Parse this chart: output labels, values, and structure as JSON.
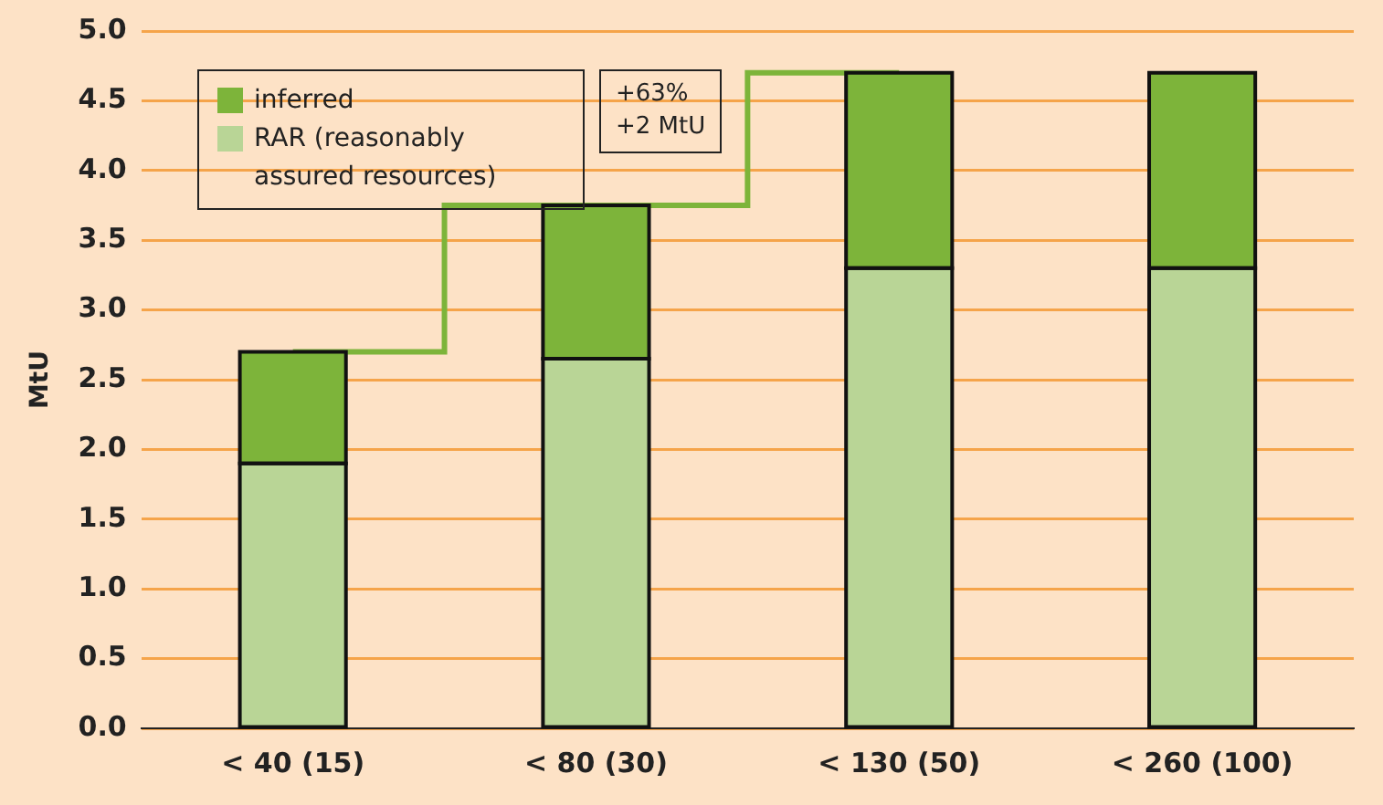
{
  "chart_data": {
    "type": "bar",
    "stacked": true,
    "ylabel": "MtU",
    "categories": [
      "< 40 (15)",
      "< 80 (30)",
      "< 130 (50)",
      "< 260 (100)"
    ],
    "series": [
      {
        "name": "RAR (reasonably assured resources)",
        "color": "#b9d596",
        "values": [
          1.9,
          2.65,
          3.3,
          3.3
        ]
      },
      {
        "name": "inferred",
        "color": "#7db43a",
        "values": [
          0.8,
          1.1,
          1.4,
          1.4
        ]
      },
      {
        "type": "step",
        "color": "#7db43a",
        "values": [
          2.7,
          3.75,
          4.7,
          null
        ]
      }
    ],
    "ylim": [
      0,
      5
    ],
    "yticks": [
      {
        "value": 0,
        "label": "0.0"
      },
      {
        "value": 0.5,
        "label": "0.5"
      },
      {
        "value": 1,
        "label": "1.0"
      },
      {
        "value": 1.5,
        "label": "1.5"
      },
      {
        "value": 2,
        "label": "2.0"
      },
      {
        "value": 2.5,
        "label": "2.5"
      },
      {
        "value": 3,
        "label": "3.0"
      },
      {
        "value": 3.5,
        "label": "3.5"
      },
      {
        "value": 4,
        "label": "4.0"
      },
      {
        "value": 4.5,
        "label": "4.5"
      },
      {
        "value": 5,
        "label": "5.0"
      }
    ],
    "grid": "y",
    "legend": "top left",
    "annotations": [
      "+63%\n+2 MtU"
    ]
  }
}
